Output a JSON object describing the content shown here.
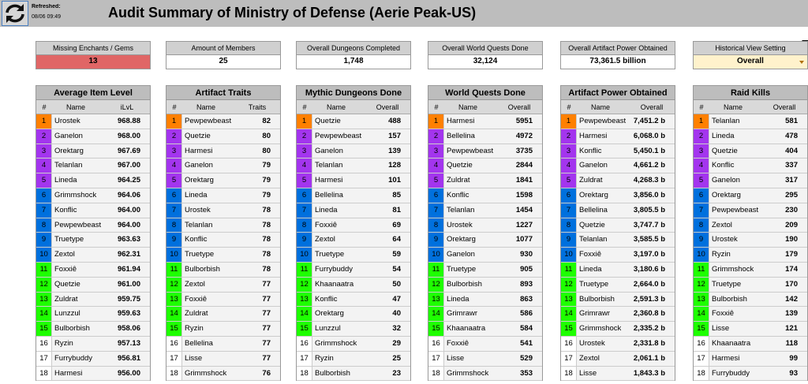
{
  "header": {
    "refreshed_label": "Refreshed:",
    "refreshed_time": "08/06 09:49",
    "title": "Audit Summary of Ministry of Defense (Aerie Peak-US)"
  },
  "cards": [
    {
      "label": "Missing Enchants / Gems",
      "value": "13"
    },
    {
      "label": "Amount of Members",
      "value": "25"
    },
    {
      "label": "Overall Dungeons Completed",
      "value": "1,748"
    },
    {
      "label": "Overall World Quests Done",
      "value": "32,124"
    },
    {
      "label": "Overall Artifact Power Obtained",
      "value": "73,361.5 billion"
    },
    {
      "label": "Historical View Setting",
      "value": "Overall"
    }
  ],
  "tables": [
    {
      "title": "Average Item Level",
      "headers": [
        "#",
        "Name",
        "iLvL"
      ],
      "rows": [
        [
          1,
          "Urostek",
          "968.88"
        ],
        [
          2,
          "Ganelon",
          "968.00"
        ],
        [
          3,
          "Orektarg",
          "967.69"
        ],
        [
          4,
          "Telanlan",
          "967.00"
        ],
        [
          5,
          "Lineda",
          "964.25"
        ],
        [
          6,
          "Grimmshock",
          "964.06"
        ],
        [
          7,
          "Konflic",
          "964.00"
        ],
        [
          8,
          "Pewpewbeast",
          "964.00"
        ],
        [
          9,
          "Truetype",
          "963.63"
        ],
        [
          10,
          "Zextol",
          "962.31"
        ],
        [
          11,
          "Foxxiê",
          "961.94"
        ],
        [
          12,
          "Quetzie",
          "961.00"
        ],
        [
          13,
          "Zuldrat",
          "959.75"
        ],
        [
          14,
          "Lunzzul",
          "959.63"
        ],
        [
          15,
          "Bulborbish",
          "958.06"
        ],
        [
          16,
          "Ryzin",
          "957.13"
        ],
        [
          17,
          "Furrybuddy",
          "956.81"
        ],
        [
          18,
          "Harmesi",
          "956.00"
        ]
      ]
    },
    {
      "title": "Artifact Traits",
      "headers": [
        "#",
        "Name",
        "Traits"
      ],
      "rows": [
        [
          1,
          "Pewpewbeast",
          "82"
        ],
        [
          2,
          "Quetzie",
          "80"
        ],
        [
          3,
          "Harmesi",
          "80"
        ],
        [
          4,
          "Ganelon",
          "79"
        ],
        [
          5,
          "Orektarg",
          "79"
        ],
        [
          6,
          "Lineda",
          "79"
        ],
        [
          7,
          "Urostek",
          "78"
        ],
        [
          8,
          "Telanlan",
          "78"
        ],
        [
          9,
          "Konflic",
          "78"
        ],
        [
          10,
          "Truetype",
          "78"
        ],
        [
          11,
          "Bulborbish",
          "78"
        ],
        [
          12,
          "Zextol",
          "77"
        ],
        [
          13,
          "Foxxiê",
          "77"
        ],
        [
          14,
          "Zuldrat",
          "77"
        ],
        [
          15,
          "Ryzin",
          "77"
        ],
        [
          16,
          "Bellelina",
          "77"
        ],
        [
          17,
          "Lisse",
          "77"
        ],
        [
          18,
          "Grimmshock",
          "76"
        ]
      ]
    },
    {
      "title": "Mythic Dungeons Done",
      "headers": [
        "#",
        "Name",
        "Overall"
      ],
      "rows": [
        [
          1,
          "Quetzie",
          "488"
        ],
        [
          2,
          "Pewpewbeast",
          "157"
        ],
        [
          3,
          "Ganelon",
          "139"
        ],
        [
          4,
          "Telanlan",
          "128"
        ],
        [
          5,
          "Harmesi",
          "101"
        ],
        [
          6,
          "Bellelina",
          "85"
        ],
        [
          7,
          "Lineda",
          "81"
        ],
        [
          8,
          "Foxxiê",
          "69"
        ],
        [
          9,
          "Zextol",
          "64"
        ],
        [
          10,
          "Truetype",
          "59"
        ],
        [
          11,
          "Furrybuddy",
          "54"
        ],
        [
          12,
          "Khaanaatra",
          "50"
        ],
        [
          13,
          "Konflic",
          "47"
        ],
        [
          14,
          "Orektarg",
          "40"
        ],
        [
          15,
          "Lunzzul",
          "32"
        ],
        [
          16,
          "Grimmshock",
          "29"
        ],
        [
          17,
          "Ryzin",
          "25"
        ],
        [
          18,
          "Bulborbish",
          "23"
        ]
      ]
    },
    {
      "title": "World Quests Done",
      "headers": [
        "#",
        "Name",
        "Overall"
      ],
      "rows": [
        [
          1,
          "Harmesi",
          "5951"
        ],
        [
          2,
          "Bellelina",
          "4972"
        ],
        [
          3,
          "Pewpewbeast",
          "3735"
        ],
        [
          4,
          "Quetzie",
          "2844"
        ],
        [
          5,
          "Zuldrat",
          "1841"
        ],
        [
          6,
          "Konflic",
          "1598"
        ],
        [
          7,
          "Telanlan",
          "1454"
        ],
        [
          8,
          "Urostek",
          "1227"
        ],
        [
          9,
          "Orektarg",
          "1077"
        ],
        [
          10,
          "Ganelon",
          "930"
        ],
        [
          11,
          "Truetype",
          "905"
        ],
        [
          12,
          "Bulborbish",
          "893"
        ],
        [
          13,
          "Lineda",
          "863"
        ],
        [
          14,
          "Grimrawr",
          "586"
        ],
        [
          15,
          "Khaanaatra",
          "584"
        ],
        [
          16,
          "Foxxiê",
          "541"
        ],
        [
          17,
          "Lisse",
          "529"
        ],
        [
          18,
          "Grimmshock",
          "353"
        ]
      ]
    },
    {
      "title": "Artifact Power Obtained",
      "headers": [
        "#",
        "Name",
        "Overall"
      ],
      "rows": [
        [
          1,
          "Pewpewbeast",
          "7,451.2 b"
        ],
        [
          2,
          "Harmesi",
          "6,068.0 b"
        ],
        [
          3,
          "Konflic",
          "5,450.1 b"
        ],
        [
          4,
          "Ganelon",
          "4,661.2 b"
        ],
        [
          5,
          "Zuldrat",
          "4,268.3 b"
        ],
        [
          6,
          "Orektarg",
          "3,856.0 b"
        ],
        [
          7,
          "Bellelina",
          "3,805.5 b"
        ],
        [
          8,
          "Quetzie",
          "3,747.7 b"
        ],
        [
          9,
          "Telanlan",
          "3,585.5 b"
        ],
        [
          10,
          "Foxxiê",
          "3,197.0 b"
        ],
        [
          11,
          "Lineda",
          "3,180.6 b"
        ],
        [
          12,
          "Truetype",
          "2,664.0 b"
        ],
        [
          13,
          "Bulborbish",
          "2,591.3 b"
        ],
        [
          14,
          "Grimrawr",
          "2,360.8 b"
        ],
        [
          15,
          "Grimmshock",
          "2,335.2 b"
        ],
        [
          16,
          "Urostek",
          "2,331.8 b"
        ],
        [
          17,
          "Zextol",
          "2,061.1 b"
        ],
        [
          18,
          "Lisse",
          "1,843.3 b"
        ]
      ]
    },
    {
      "title": "Raid Kills",
      "headers": [
        "#",
        "Name",
        "Overall"
      ],
      "rows": [
        [
          1,
          "Telanlan",
          "581"
        ],
        [
          2,
          "Lineda",
          "478"
        ],
        [
          3,
          "Quetzie",
          "404"
        ],
        [
          4,
          "Konflic",
          "337"
        ],
        [
          5,
          "Ganelon",
          "317"
        ],
        [
          6,
          "Orektarg",
          "295"
        ],
        [
          7,
          "Pewpewbeast",
          "230"
        ],
        [
          8,
          "Zextol",
          "209"
        ],
        [
          9,
          "Urostek",
          "190"
        ],
        [
          10,
          "Ryzin",
          "179"
        ],
        [
          11,
          "Grimmshock",
          "174"
        ],
        [
          12,
          "Truetype",
          "170"
        ],
        [
          13,
          "Bulborbish",
          "142"
        ],
        [
          14,
          "Foxxiê",
          "139"
        ],
        [
          15,
          "Lisse",
          "121"
        ],
        [
          16,
          "Khaanaatra",
          "118"
        ],
        [
          17,
          "Harmesi",
          "99"
        ],
        [
          18,
          "Furrybuddy",
          "93"
        ]
      ]
    }
  ]
}
